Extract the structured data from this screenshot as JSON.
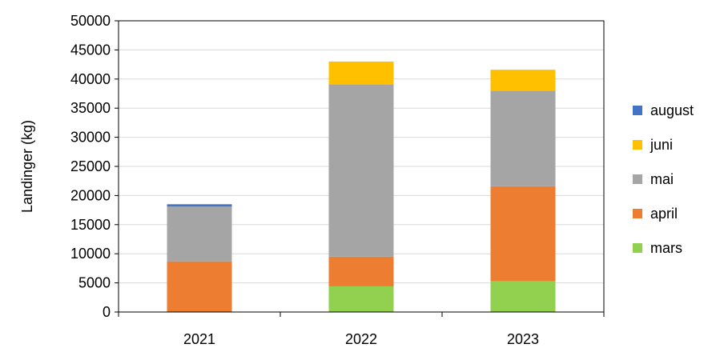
{
  "chart_data": {
    "type": "bar",
    "stacked": true,
    "title": "",
    "xlabel": "",
    "ylabel": "Landinger (kg)",
    "ylim": [
      0,
      50000
    ],
    "yticks": [
      0,
      5000,
      10000,
      15000,
      20000,
      25000,
      30000,
      35000,
      40000,
      45000,
      50000
    ],
    "grid": true,
    "legend_position": "right",
    "categories": [
      "2021",
      "2022",
      "2023"
    ],
    "series": [
      {
        "name": "mars",
        "color": "#92D050",
        "values": [
          0,
          4400,
          5300
        ]
      },
      {
        "name": "april",
        "color": "#ED7D31",
        "values": [
          8700,
          5100,
          16300
        ]
      },
      {
        "name": "mai",
        "color": "#A5A5A5",
        "values": [
          9400,
          29600,
          16400
        ]
      },
      {
        "name": "juni",
        "color": "#FFC000",
        "values": [
          0,
          3900,
          3600
        ]
      },
      {
        "name": "august",
        "color": "#4472C4",
        "values": [
          400,
          0,
          0
        ]
      }
    ]
  }
}
